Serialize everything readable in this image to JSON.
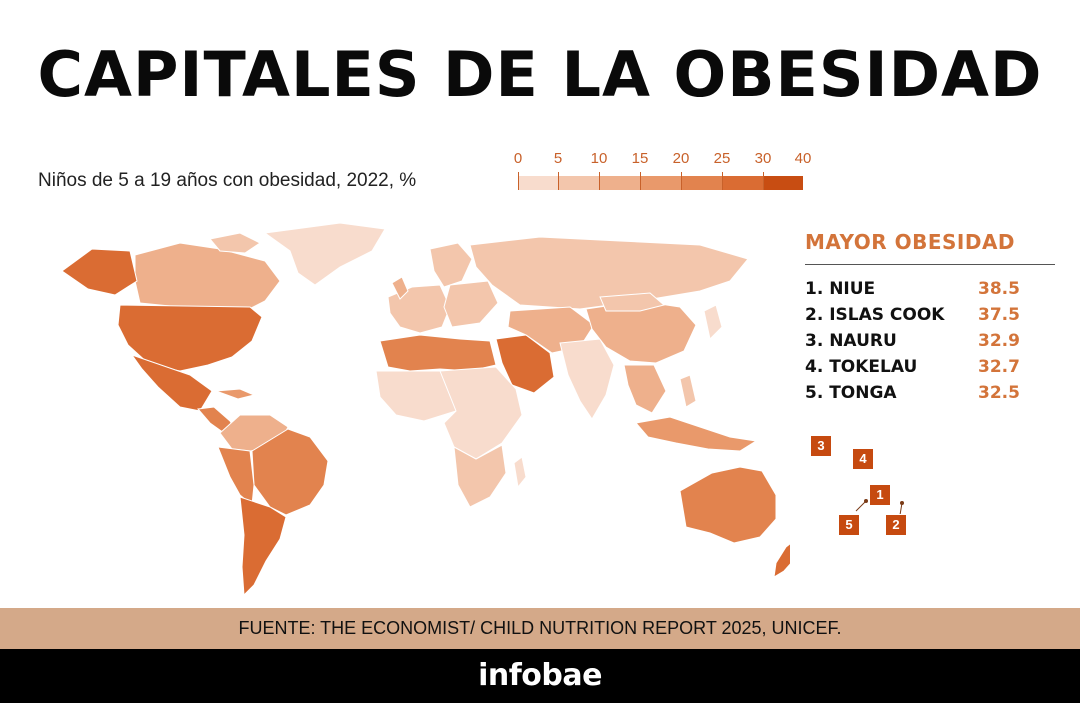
{
  "title": "CAPITALES DE LA OBESIDAD",
  "subtitle": "Niños de 5 a 19 años con obesidad, 2022, %",
  "legend": {
    "ticks": [
      "0",
      "5",
      "10",
      "15",
      "20",
      "25",
      "30",
      "40"
    ],
    "colors": [
      "#f8dccd",
      "#f3c6ac",
      "#eeb08c",
      "#e9996b",
      "#e2834e",
      "#da6c33",
      "#c84d12"
    ]
  },
  "ranking": {
    "heading": "MAYOR OBESIDAD",
    "items": [
      {
        "rank": "1",
        "name": "1. NIUE",
        "value": "38.5"
      },
      {
        "rank": "2",
        "name": "2. ISLAS COOK",
        "value": "37.5"
      },
      {
        "rank": "3",
        "name": "3. NAURU",
        "value": "32.9"
      },
      {
        "rank": "4",
        "name": "4. TOKELAU",
        "value": "32.7"
      },
      {
        "rank": "5",
        "name": "5. TONGA",
        "value": "32.5"
      }
    ]
  },
  "source": "FUENTE: THE ECONOMIST/ CHILD NUTRITION REPORT 2025, UNICEF.",
  "brand": "infobae"
}
